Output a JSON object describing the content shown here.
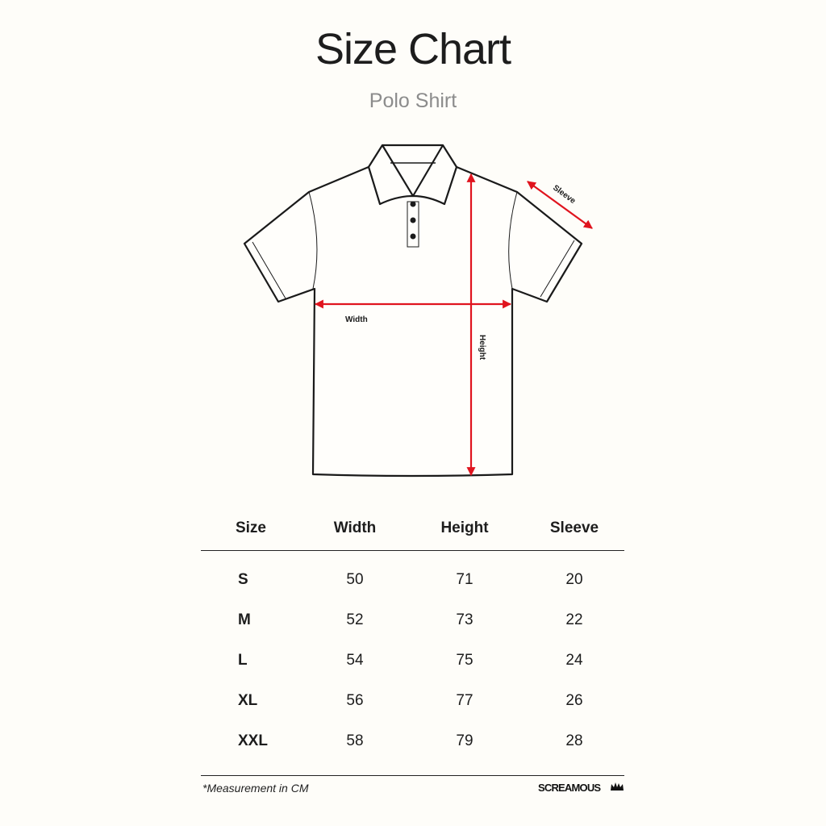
{
  "title": "Size Chart",
  "subtitle": "Polo Shirt",
  "diagram": {
    "labels": {
      "width": "Width",
      "height": "Height",
      "sleeve": "Sleeve"
    },
    "arrow_color": "#e0141e",
    "outline_color": "#1a1a1a"
  },
  "table": {
    "headers": [
      "Size",
      "Width",
      "Height",
      "Sleeve"
    ],
    "rows": [
      [
        "S",
        "50",
        "71",
        "20"
      ],
      [
        "M",
        "52",
        "73",
        "22"
      ],
      [
        "L",
        "54",
        "75",
        "24"
      ],
      [
        "XL",
        "56",
        "77",
        "26"
      ],
      [
        "XXL",
        "58",
        "79",
        "28"
      ]
    ]
  },
  "footer": {
    "note": "*Measurement in CM",
    "brand": "SCREAMOUS",
    "brand_icon": "crown-icon"
  }
}
